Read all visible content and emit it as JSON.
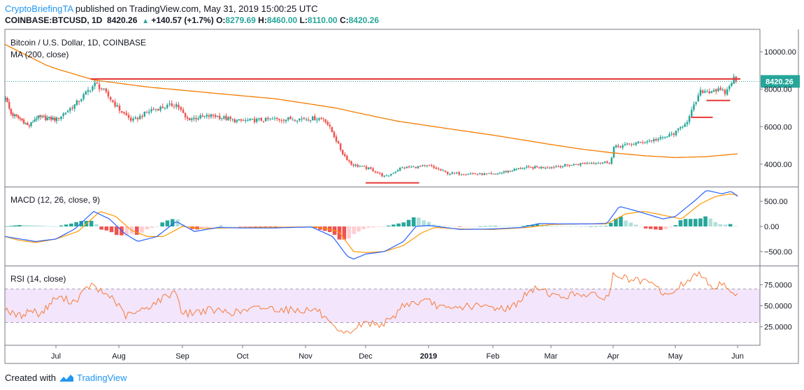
{
  "header": {
    "author": "CryptoBriefingTA",
    "published": "published on TradingView.com, May 31, 2019 15:00:25 UTC",
    "symbol": "COINBASE:BTCUSD, 1D",
    "last": "8420.26",
    "change": "+140.57 (+1.7%)",
    "o_label": "O:",
    "o_value": "8279.69",
    "h_label": "H:",
    "h_value": "8460.00",
    "l_label": "L:",
    "l_value": "8110.00",
    "c_label": "C:",
    "c_value": "8420.26"
  },
  "footer": {
    "created_with": "Created with",
    "brand": "TradingView"
  },
  "colors": {
    "up": "#26a69a",
    "down": "#ef5350",
    "ma": "#f57c00",
    "macd": "#2962ff",
    "signal": "#ff9800",
    "rsi": "#f57c3a",
    "level": "#e53935",
    "rsiBand": "#f3e5fb"
  },
  "chart_data": [
    {
      "type": "candlestick",
      "title": "Bitcoin / U.S. Dollar, 1D, COINBASE",
      "indicator_label": "MA (200, close)",
      "ylim": [
        2800,
        11200
      ],
      "ticks": [
        4000,
        6000,
        8000,
        10000
      ],
      "tick_labels": [
        "4000.00",
        "6000.00",
        "8000.00",
        "10000.00"
      ],
      "last_price": 8420.26,
      "last_label": "8420.26",
      "x_months": [
        "Jul",
        "Aug",
        "Sep",
        "Oct",
        "Nov",
        "Dec",
        "2019",
        "Feb",
        "Mar",
        "Apr",
        "May",
        "Jun"
      ],
      "month_index": [
        1,
        2,
        3,
        4,
        5,
        6,
        7,
        8,
        9,
        10,
        11,
        12
      ],
      "close_anchors": [
        [
          0,
          7600
        ],
        [
          0.1,
          6700
        ],
        [
          0.35,
          6300
        ],
        [
          0.45,
          6000
        ],
        [
          0.6,
          6500
        ],
        [
          1.0,
          6400
        ],
        [
          1.3,
          7200
        ],
        [
          1.55,
          8100
        ],
        [
          1.62,
          8300
        ],
        [
          1.75,
          7900
        ],
        [
          2.0,
          6900
        ],
        [
          2.2,
          6300
        ],
        [
          2.5,
          6900
        ],
        [
          2.9,
          7200
        ],
        [
          3.05,
          6400
        ],
        [
          3.5,
          6600
        ],
        [
          3.9,
          6300
        ],
        [
          4.5,
          6400
        ],
        [
          5.3,
          6450
        ],
        [
          5.45,
          5600
        ],
        [
          5.6,
          4600
        ],
        [
          5.75,
          4000
        ],
        [
          6.1,
          3700
        ],
        [
          6.3,
          3300
        ],
        [
          6.55,
          3800
        ],
        [
          7.0,
          3900
        ],
        [
          7.3,
          3500
        ],
        [
          7.6,
          3500
        ],
        [
          8.0,
          3450
        ],
        [
          8.5,
          3800
        ],
        [
          9.0,
          3850
        ],
        [
          9.7,
          4100
        ],
        [
          9.95,
          4100
        ],
        [
          10.0,
          4900
        ],
        [
          10.5,
          5200
        ],
        [
          10.8,
          5400
        ],
        [
          11.0,
          5700
        ],
        [
          11.2,
          6400
        ],
        [
          11.3,
          7200
        ],
        [
          11.4,
          7900
        ],
        [
          11.55,
          7900
        ],
        [
          11.6,
          8000
        ],
        [
          11.8,
          7800
        ],
        [
          11.92,
          8600
        ],
        [
          12.0,
          8420
        ]
      ],
      "ma200_anchors": [
        [
          0,
          10400
        ],
        [
          0.8,
          9300
        ],
        [
          1.6,
          8500
        ],
        [
          2.5,
          8100
        ],
        [
          3.5,
          7800
        ],
        [
          4.5,
          7500
        ],
        [
          5.5,
          7000
        ],
        [
          6.5,
          6300
        ],
        [
          7.5,
          5800
        ],
        [
          8.5,
          5300
        ],
        [
          9.5,
          4800
        ],
        [
          10.0,
          4600
        ],
        [
          10.5,
          4450
        ],
        [
          11.0,
          4350
        ],
        [
          11.5,
          4400
        ],
        [
          12.0,
          4550
        ]
      ],
      "levels": [
        {
          "from": 1.55,
          "to": 12.0,
          "value": 8550
        },
        {
          "from": 11.5,
          "to": 11.88,
          "value": 7400
        },
        {
          "from": 11.25,
          "to": 11.6,
          "value": 6500
        },
        {
          "from": 6.0,
          "to": 6.85,
          "value": 3000
        }
      ]
    },
    {
      "type": "macd",
      "title": "MACD (12, 26, close, 9)",
      "ylim": [
        -780,
        780
      ],
      "ticks": [
        500,
        0,
        -500
      ],
      "tick_labels": [
        "500.00",
        "0.00",
        "−500.00"
      ],
      "macd_anchors": [
        [
          0,
          -200
        ],
        [
          0.3,
          -250
        ],
        [
          0.6,
          -300
        ],
        [
          1.0,
          -250
        ],
        [
          1.3,
          -50
        ],
        [
          1.6,
          300
        ],
        [
          1.85,
          150
        ],
        [
          2.1,
          -150
        ],
        [
          2.3,
          -300
        ],
        [
          2.6,
          -200
        ],
        [
          2.9,
          100
        ],
        [
          3.2,
          -100
        ],
        [
          3.6,
          -20
        ],
        [
          4.0,
          -30
        ],
        [
          4.5,
          -30
        ],
        [
          5.1,
          -10
        ],
        [
          5.45,
          -200
        ],
        [
          5.7,
          -600
        ],
        [
          5.8,
          -650
        ],
        [
          6.0,
          -550
        ],
        [
          6.3,
          -500
        ],
        [
          6.6,
          -300
        ],
        [
          6.8,
          0
        ],
        [
          7.0,
          20
        ],
        [
          7.5,
          -60
        ],
        [
          8.0,
          -50
        ],
        [
          8.5,
          -20
        ],
        [
          8.8,
          60
        ],
        [
          9.2,
          50
        ],
        [
          9.6,
          50
        ],
        [
          9.9,
          60
        ],
        [
          10.1,
          400
        ],
        [
          10.4,
          300
        ],
        [
          10.8,
          150
        ],
        [
          11.0,
          200
        ],
        [
          11.3,
          500
        ],
        [
          11.5,
          720
        ],
        [
          11.75,
          650
        ],
        [
          11.9,
          700
        ],
        [
          12.0,
          600
        ]
      ],
      "signal_anchors": [
        [
          0,
          -200
        ],
        [
          0.3,
          -280
        ],
        [
          0.6,
          -320
        ],
        [
          1.0,
          -250
        ],
        [
          1.35,
          -100
        ],
        [
          1.7,
          300
        ],
        [
          1.95,
          200
        ],
        [
          2.2,
          -80
        ],
        [
          2.45,
          -200
        ],
        [
          2.7,
          -200
        ],
        [
          3.0,
          0
        ],
        [
          3.3,
          -40
        ],
        [
          3.7,
          -30
        ],
        [
          4.2,
          -20
        ],
        [
          5.2,
          -10
        ],
        [
          5.55,
          -100
        ],
        [
          5.8,
          -500
        ],
        [
          6.0,
          -520
        ],
        [
          6.3,
          -500
        ],
        [
          6.6,
          -380
        ],
        [
          6.9,
          -120
        ],
        [
          7.1,
          -20
        ],
        [
          7.5,
          -50
        ],
        [
          8.0,
          -60
        ],
        [
          8.6,
          -20
        ],
        [
          9.0,
          40
        ],
        [
          9.5,
          50
        ],
        [
          9.9,
          50
        ],
        [
          10.2,
          250
        ],
        [
          10.5,
          300
        ],
        [
          10.9,
          200
        ],
        [
          11.1,
          150
        ],
        [
          11.4,
          450
        ],
        [
          11.65,
          600
        ],
        [
          11.9,
          650
        ],
        [
          12.0,
          620
        ]
      ]
    },
    {
      "type": "rsi",
      "title": "RSI (14, close)",
      "ylim": [
        3,
        97
      ],
      "ticks": [
        75,
        50,
        25
      ],
      "tick_labels": [
        "75.0000",
        "50.0000",
        "25.0000"
      ],
      "band": [
        30,
        70
      ],
      "rsi_anchors": [
        [
          0,
          48
        ],
        [
          0.15,
          40
        ],
        [
          0.3,
          38
        ],
        [
          0.5,
          45
        ],
        [
          0.7,
          40
        ],
        [
          1.0,
          60
        ],
        [
          1.3,
          55
        ],
        [
          1.55,
          75
        ],
        [
          1.7,
          67
        ],
        [
          1.9,
          60
        ],
        [
          2.1,
          38
        ],
        [
          2.3,
          42
        ],
        [
          2.6,
          55
        ],
        [
          2.9,
          68
        ],
        [
          3.0,
          40
        ],
        [
          3.4,
          45
        ],
        [
          3.9,
          42
        ],
        [
          4.3,
          48
        ],
        [
          4.8,
          45
        ],
        [
          5.2,
          45
        ],
        [
          5.35,
          32
        ],
        [
          5.5,
          20
        ],
        [
          5.65,
          15
        ],
        [
          5.8,
          22
        ],
        [
          6.0,
          30
        ],
        [
          6.2,
          28
        ],
        [
          6.4,
          32
        ],
        [
          6.6,
          52
        ],
        [
          7.0,
          55
        ],
        [
          7.3,
          45
        ],
        [
          7.6,
          50
        ],
        [
          8.0,
          48
        ],
        [
          8.3,
          47
        ],
        [
          8.6,
          65
        ],
        [
          8.8,
          72
        ],
        [
          9.1,
          60
        ],
        [
          9.5,
          65
        ],
        [
          9.8,
          60
        ],
        [
          9.95,
          62
        ],
        [
          10.0,
          88
        ],
        [
          10.3,
          80
        ],
        [
          10.6,
          77
        ],
        [
          10.9,
          60
        ],
        [
          11.0,
          70
        ],
        [
          11.3,
          85
        ],
        [
          11.45,
          88
        ],
        [
          11.6,
          70
        ],
        [
          11.75,
          78
        ],
        [
          11.9,
          68
        ],
        [
          12.0,
          62
        ]
      ]
    }
  ]
}
